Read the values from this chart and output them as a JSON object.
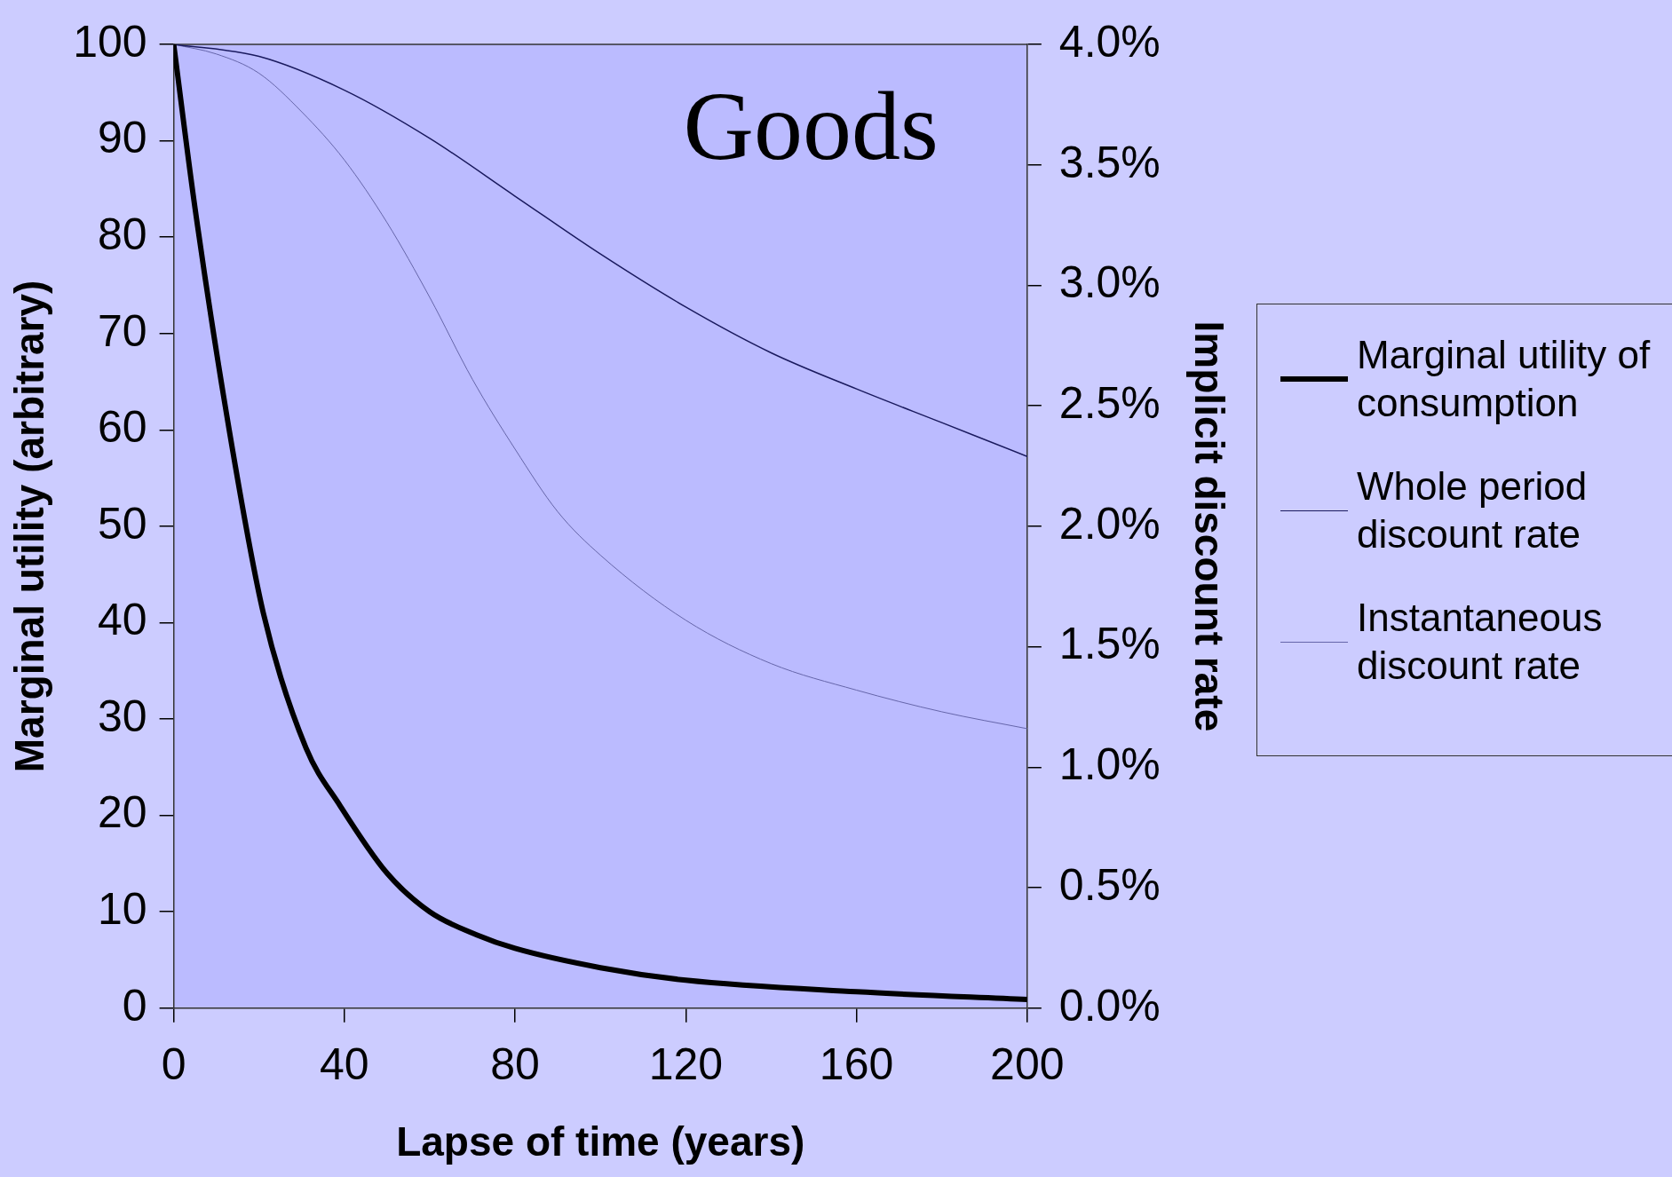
{
  "chart_data": {
    "type": "line",
    "title": "Goods",
    "xlabel": "Lapse of time (years)",
    "ylabel": "Marginal utility (arbitrary)",
    "y2label": "Implicit discount rate",
    "x": [
      0,
      5,
      13,
      21,
      31,
      39,
      50,
      60,
      71,
      80,
      100,
      120,
      160,
      200
    ],
    "xlim": [
      0,
      200
    ],
    "xticks": [
      0,
      40,
      80,
      120,
      160,
      200
    ],
    "ylim": [
      0,
      100
    ],
    "yticks": [
      0,
      10,
      20,
      30,
      40,
      50,
      60,
      70,
      80,
      90,
      100
    ],
    "y2lim": [
      0,
      4
    ],
    "y2ticks": [
      {
        "value": 0,
        "label": "0.0%"
      },
      {
        "value": 0.5,
        "label": "0.5%"
      },
      {
        "value": 1,
        "label": "1.0%"
      },
      {
        "value": 1.5,
        "label": "1.5%"
      },
      {
        "value": 2,
        "label": "2.0%"
      },
      {
        "value": 2.5,
        "label": "2.5%"
      },
      {
        "value": 3,
        "label": "3.0%"
      },
      {
        "value": 3.5,
        "label": "3.5%"
      },
      {
        "value": 4,
        "label": "4.0%"
      }
    ],
    "legend": "right",
    "marker": "none",
    "grid": false,
    "series": [
      {
        "name": "Marginal utility of consumption",
        "color": "#000000",
        "values": [
          100,
          83,
          60,
          41,
          27,
          21,
          14,
          10,
          7.6,
          6.2,
          4.2,
          2.9,
          1.7,
          0.9
        ]
      },
      {
        "name": "Whole period discount rate",
        "color": "#1a1a5e",
        "axis": "y2",
        "x": [
          0,
          20,
          40,
          60,
          80,
          100,
          120,
          140,
          160,
          180,
          200
        ],
        "values": [
          4.0,
          3.95,
          3.81,
          3.61,
          3.37,
          3.13,
          2.91,
          2.72,
          2.57,
          2.43,
          2.29
        ]
      },
      {
        "name": "Instantaneous discount rate",
        "color": "#6666aa",
        "axis": "y2",
        "x": [
          0,
          10,
          20,
          30,
          40,
          50,
          60,
          70,
          80,
          90,
          100,
          120,
          140,
          160,
          180,
          200
        ],
        "values": [
          4.0,
          3.96,
          3.88,
          3.72,
          3.52,
          3.26,
          2.95,
          2.61,
          2.32,
          2.06,
          1.88,
          1.61,
          1.43,
          1.32,
          1.23,
          1.16
        ]
      }
    ]
  }
}
